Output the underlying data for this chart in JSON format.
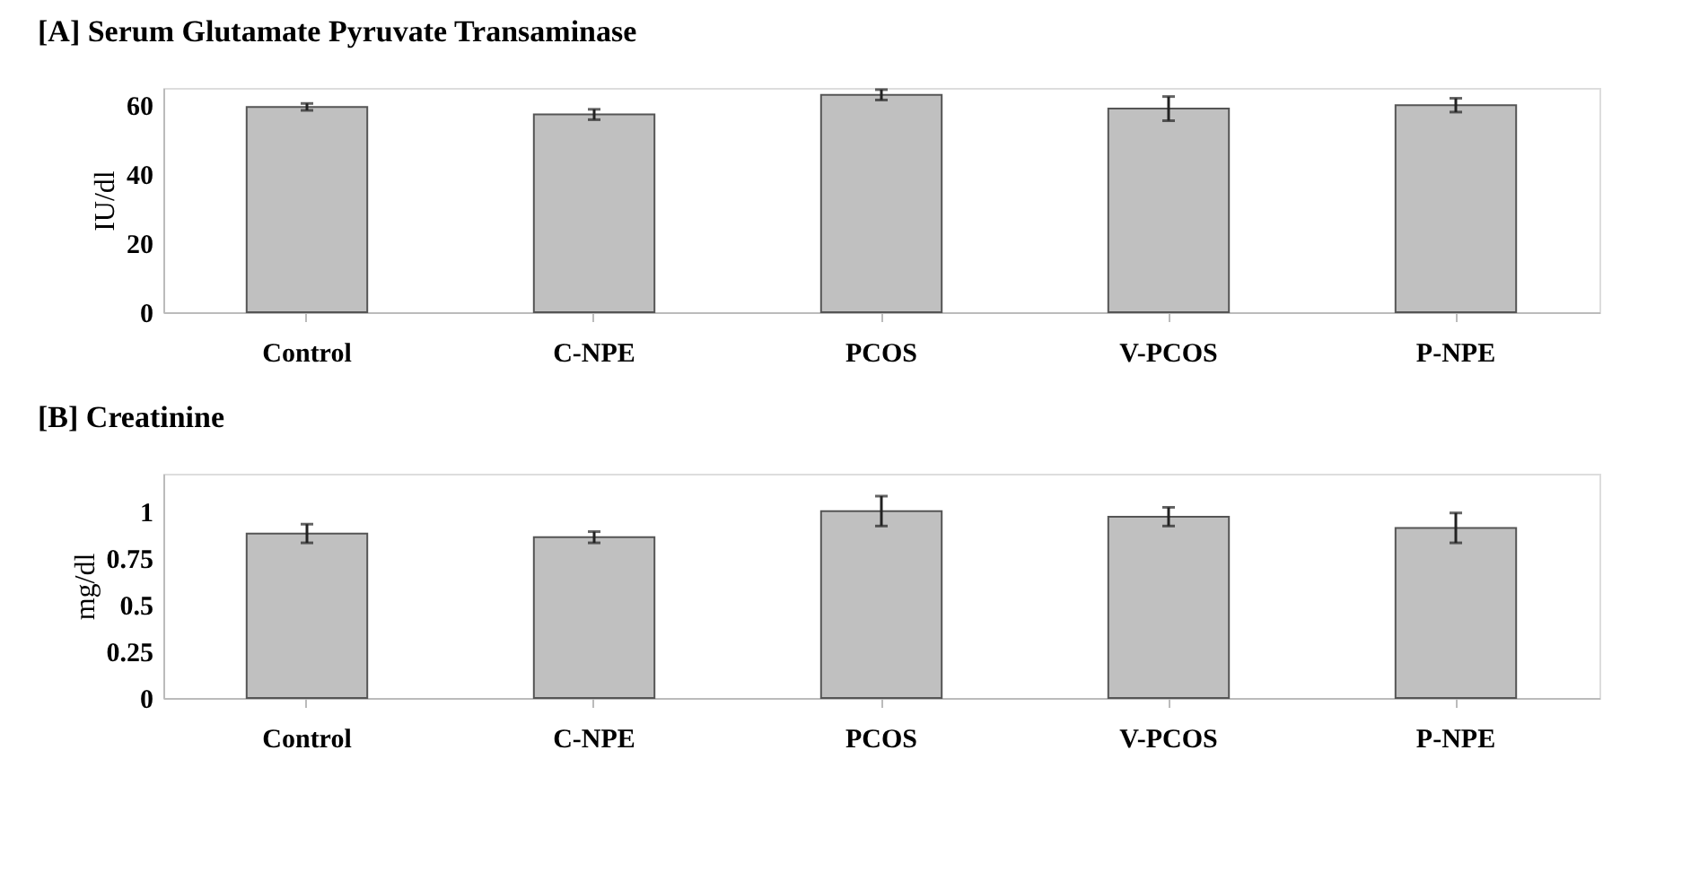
{
  "chart_data": [
    {
      "type": "bar",
      "title": "[A] Serum Glutamate Pyruvate Transaminase",
      "ylabel": "IU/dl",
      "categories": [
        "Control",
        "C-NPE",
        "PCOS",
        "V-PCOS",
        "P-NPE"
      ],
      "values": [
        59.5,
        57.3,
        63,
        59,
        60
      ],
      "errors": [
        1,
        1.5,
        1.5,
        3.5,
        2
      ],
      "color": "#c0c0c0",
      "ylim": [
        0,
        65
      ],
      "yticks": [
        0,
        20,
        40,
        60
      ],
      "grid": false
    },
    {
      "type": "bar",
      "title": "[B] Creatinine",
      "ylabel": "mg/dl",
      "categories": [
        "Control",
        "C-NPE",
        "PCOS",
        "V-PCOS",
        "P-NPE"
      ],
      "values": [
        0.88,
        0.86,
        1.0,
        0.97,
        0.91
      ],
      "errors": [
        0.05,
        0.03,
        0.08,
        0.05,
        0.08
      ],
      "color": "#c0c0c0",
      "ylim": [
        0,
        1.2
      ],
      "yticks": [
        0,
        0.25,
        0.5,
        0.75,
        1
      ],
      "grid": false
    }
  ]
}
